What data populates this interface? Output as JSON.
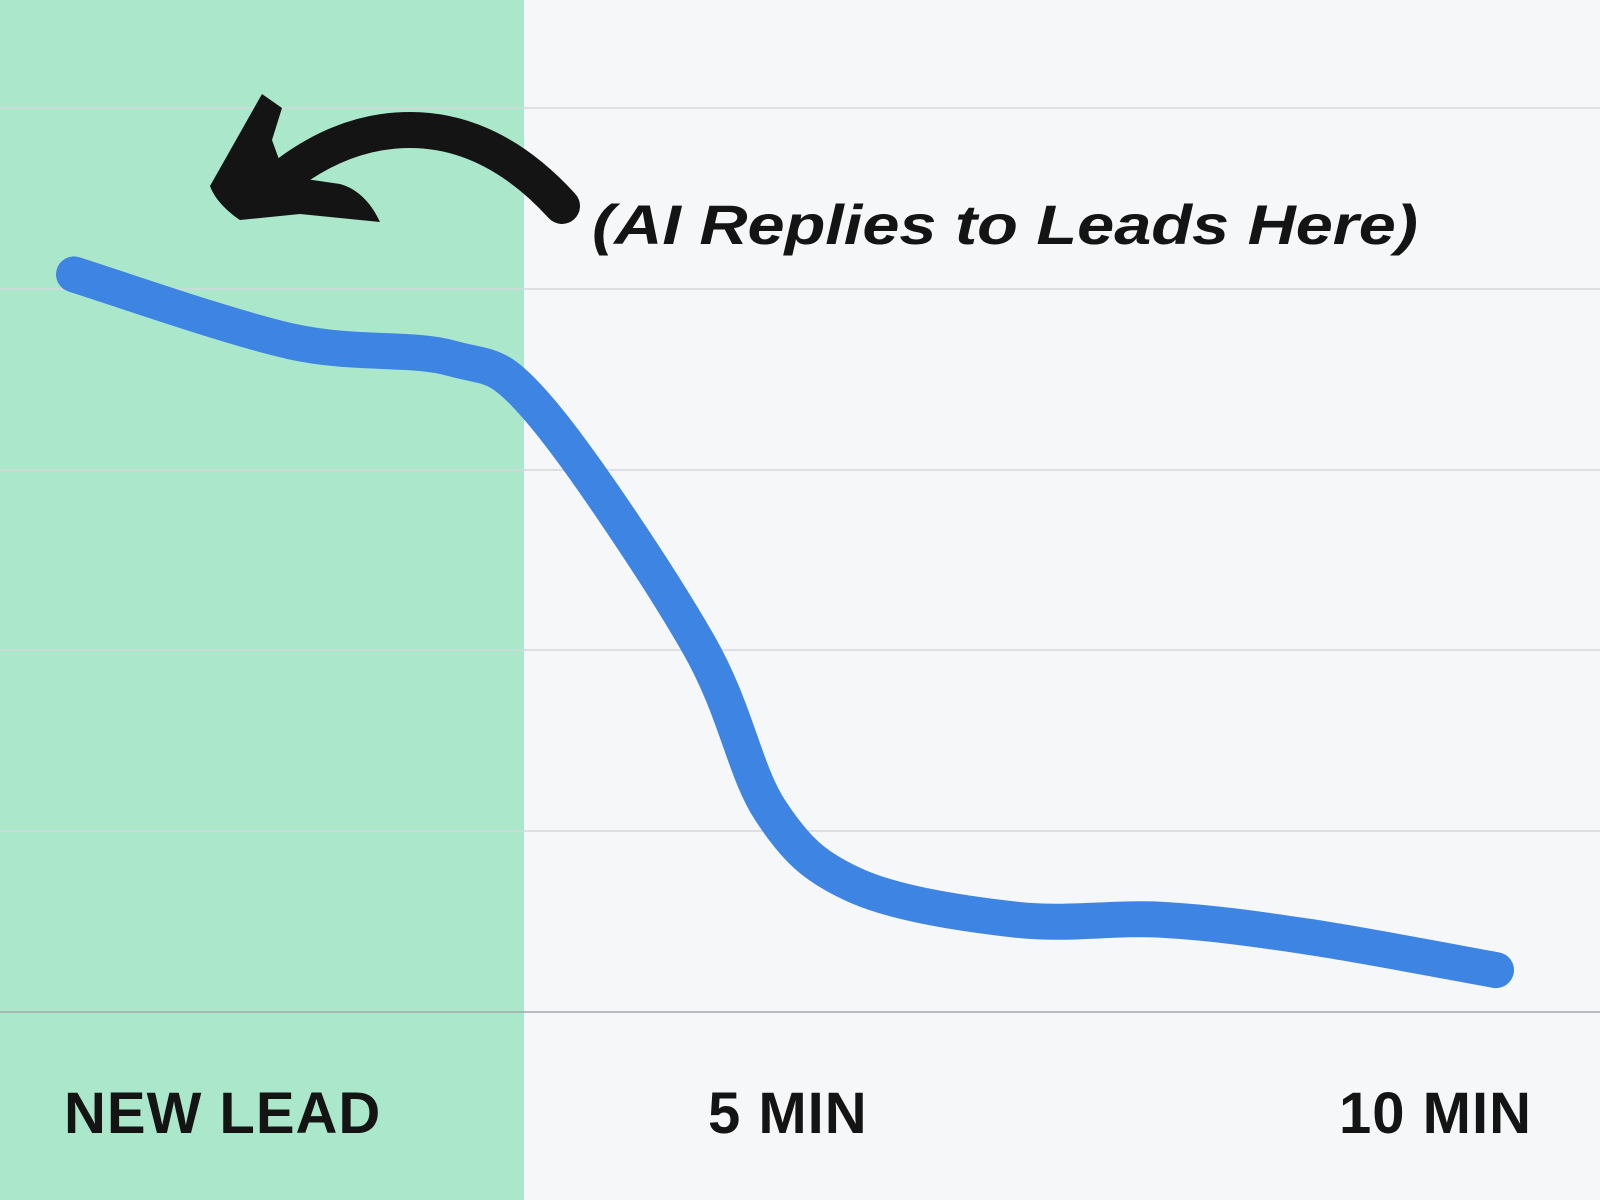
{
  "chart_data": {
    "type": "line",
    "title": "",
    "xlabel": "",
    "ylabel": "",
    "categories": [
      "NEW LEAD",
      "5 MIN",
      "10 MIN"
    ],
    "xlim": [
      0,
      10
    ],
    "ylim": [
      0,
      5.5
    ],
    "grid": true,
    "highlight_region": {
      "x": [
        0,
        3.1
      ],
      "color": "#abe7cb"
    },
    "series": [
      {
        "color": "#3e84e3",
        "points": [
          {
            "x": 0,
            "y": 4.4
          },
          {
            "x": 1.5,
            "y": 4.0
          },
          {
            "x": 2.6,
            "y": 3.9
          },
          {
            "x": 3.2,
            "y": 3.6
          },
          {
            "x": 4.3,
            "y": 2.2
          },
          {
            "x": 4.8,
            "y": 1.2
          },
          {
            "x": 5.4,
            "y": 0.75
          },
          {
            "x": 6.5,
            "y": 0.55
          },
          {
            "x": 7.5,
            "y": 0.55
          },
          {
            "x": 8.5,
            "y": 0.45
          },
          {
            "x": 9.8,
            "y": 0.25
          }
        ]
      }
    ],
    "annotation": {
      "text": "(AI Replies to Leads Here)",
      "points_to": "NEW LEAD"
    }
  },
  "colors": {
    "background": "#f5f7f9",
    "highlight": "#abe7cb",
    "line": "#3e84e3",
    "ink": "#141414",
    "grid": "#d4d8dc",
    "axis": "#a3a9ad"
  },
  "icons": {
    "annotation_arrow": "curved-arrow-icon"
  }
}
